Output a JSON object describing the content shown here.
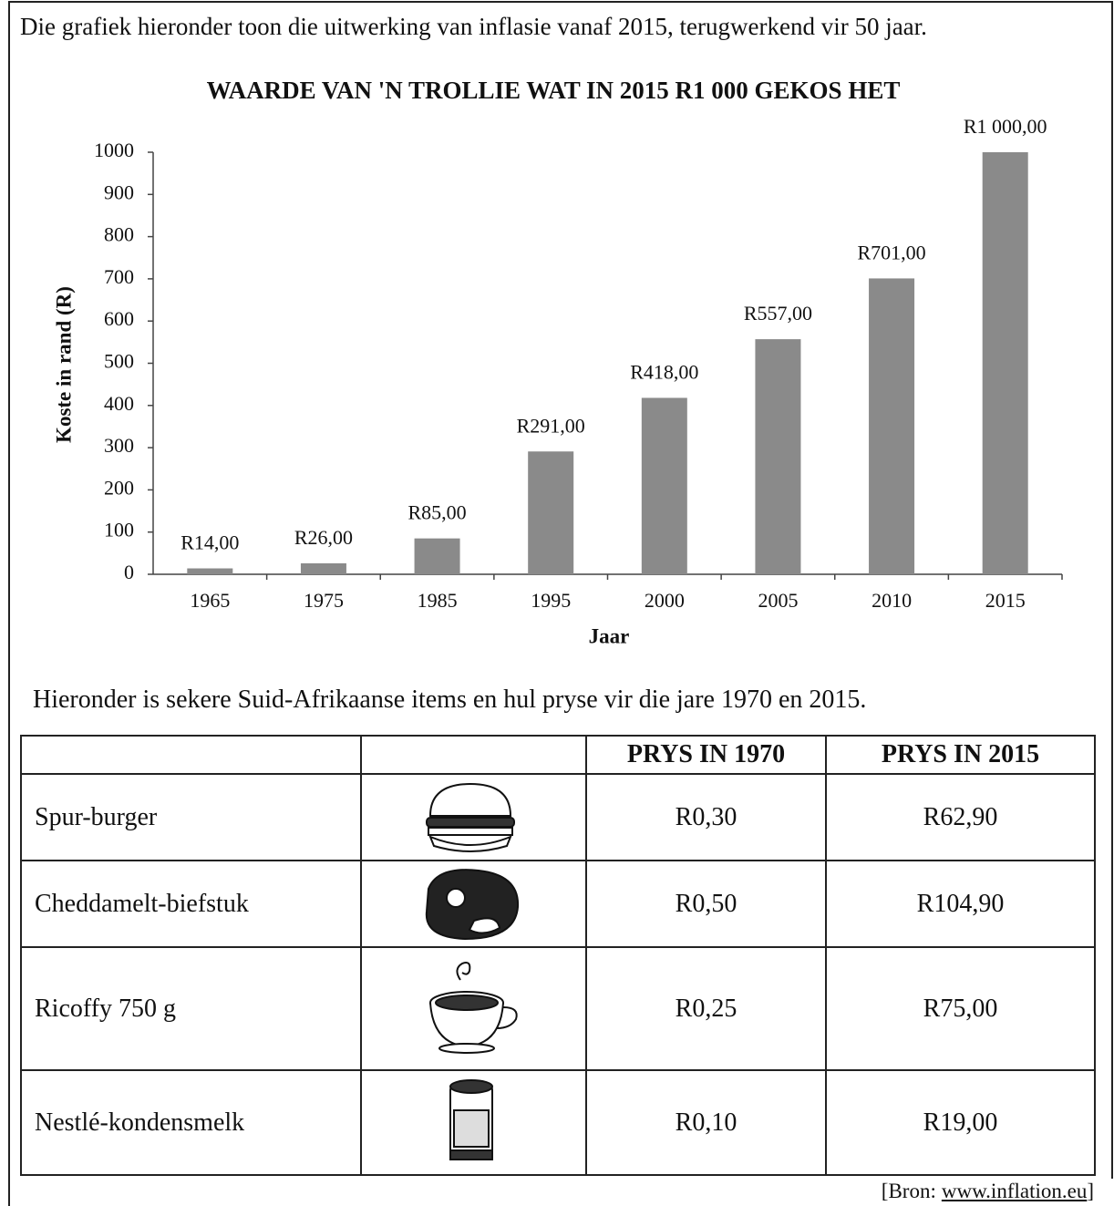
{
  "intro": "Die grafiek hieronder toon die uitwerking van inflasie vanaf 2015, terugwerkend vir 50 jaar.",
  "chart_data": {
    "type": "bar",
    "title": "WAARDE VAN 'N TROLLIE WAT IN 2015 R1 000 GEKOS HET",
    "x_label": "Jaar",
    "y_label": "Koste in rand (R)",
    "categories": [
      "1965",
      "1975",
      "1985",
      "1995",
      "2000",
      "2005",
      "2010",
      "2015"
    ],
    "values": [
      14,
      26,
      85,
      291,
      418,
      557,
      701,
      1000
    ],
    "value_labels": [
      "R14,00",
      "R26,00",
      "R85,00",
      "R291,00",
      "R418,00",
      "R557,00",
      "R701,00",
      "R1 000,00"
    ],
    "color": "#8a8a8a",
    "ylim": [
      0,
      1000
    ],
    "yticks": [
      0,
      100,
      200,
      300,
      400,
      500,
      600,
      700,
      800,
      900,
      1000
    ]
  },
  "table_intro": "Hieronder is sekere Suid-Afrikaanse items en hul pryse vir die jare 1970 en 2015.",
  "table": {
    "header": [
      "PRYS IN 1970",
      "PRYS IN 2015"
    ],
    "rows": [
      [
        "Spur-burger",
        "R0,30",
        "R62,90"
      ],
      [
        "Cheddamelt-biefstuk",
        "R0,50",
        "R104,90"
      ],
      [
        "Ricoffy 750 g",
        "R0,25",
        "R75,00"
      ],
      [
        "Nestlé-kondensmelk",
        "R0,10",
        "R19,00"
      ]
    ]
  },
  "source": {
    "prefix": "[Bron:",
    "link": "www.inflation.eu",
    "suffix": "]"
  }
}
